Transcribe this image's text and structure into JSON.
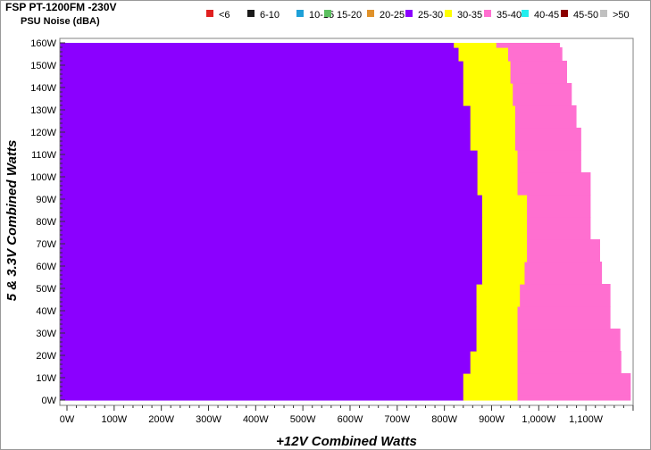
{
  "chart_data": {
    "type": "heatmap",
    "title": "FSP PT-1200FM -230V",
    "subtitle": "PSU Noise (dBA)",
    "xlabel": "+12V Combined Watts",
    "ylabel": "5 & 3.3V Combined Watts",
    "xlim": [
      0,
      1200
    ],
    "ylim": [
      0,
      160
    ],
    "x_tick_labels": [
      "0W",
      "100W",
      "200W",
      "300W",
      "400W",
      "500W",
      "600W",
      "700W",
      "800W",
      "900W",
      "1,000W",
      "1,100W"
    ],
    "x_tick_values": [
      0,
      100,
      200,
      300,
      400,
      500,
      600,
      700,
      800,
      900,
      1000,
      1100
    ],
    "y_tick_labels": [
      "0W",
      "10W",
      "20W",
      "30W",
      "40W",
      "50W",
      "60W",
      "70W",
      "80W",
      "90W",
      "100W",
      "110W",
      "120W",
      "130W",
      "140W",
      "150W",
      "160W"
    ],
    "y_tick_values": [
      0,
      10,
      20,
      30,
      40,
      50,
      60,
      70,
      80,
      90,
      100,
      110,
      120,
      130,
      140,
      150,
      160
    ],
    "legend": [
      {
        "label": "<6",
        "color": "#e02020"
      },
      {
        "label": "6-10",
        "color": "#1a1a1a"
      },
      {
        "label": "10-15",
        "color": "#1ea0d8"
      },
      {
        "label": "15-20",
        "color": "#5cc060"
      },
      {
        "label": "20-25",
        "color": "#e0922a"
      },
      {
        "label": "25-30",
        "color": "#8b00ff"
      },
      {
        "label": "30-35",
        "color": "#ffff00"
      },
      {
        "label": "35-40",
        "color": "#ff6fd0"
      },
      {
        "label": "40-45",
        "color": "#22eeee"
      },
      {
        "label": "45-50",
        "color": "#8b0000"
      },
      {
        "label": ">50",
        "color": "#c0c0c0"
      }
    ],
    "legend_position": "top",
    "grid": false,
    "bands": [
      {
        "y": [
          0,
          2
        ],
        "b25_30_end": 840,
        "b30_35_end": 955,
        "b35_40_end": 1195
      },
      {
        "y": [
          2,
          12
        ],
        "b25_30_end": 840,
        "b30_35_end": 955,
        "b35_40_end": 1195
      },
      {
        "y": [
          12,
          22
        ],
        "b25_30_end": 855,
        "b30_35_end": 955,
        "b35_40_end": 1175
      },
      {
        "y": [
          22,
          32
        ],
        "b25_30_end": 868,
        "b30_35_end": 955,
        "b35_40_end": 1173
      },
      {
        "y": [
          32,
          42
        ],
        "b25_30_end": 868,
        "b30_35_end": 955,
        "b35_40_end": 1152
      },
      {
        "y": [
          42,
          52
        ],
        "b25_30_end": 868,
        "b30_35_end": 960,
        "b35_40_end": 1152
      },
      {
        "y": [
          52,
          62
        ],
        "b25_30_end": 880,
        "b30_35_end": 970,
        "b35_40_end": 1134
      },
      {
        "y": [
          62,
          72
        ],
        "b25_30_end": 880,
        "b30_35_end": 975,
        "b35_40_end": 1130
      },
      {
        "y": [
          72,
          82
        ],
        "b25_30_end": 880,
        "b30_35_end": 975,
        "b35_40_end": 1110
      },
      {
        "y": [
          82,
          92
        ],
        "b25_30_end": 880,
        "b30_35_end": 975,
        "b35_40_end": 1110
      },
      {
        "y": [
          92,
          102
        ],
        "b25_30_end": 870,
        "b30_35_end": 955,
        "b35_40_end": 1110
      },
      {
        "y": [
          102,
          112
        ],
        "b25_30_end": 870,
        "b30_35_end": 955,
        "b35_40_end": 1090
      },
      {
        "y": [
          112,
          122
        ],
        "b25_30_end": 855,
        "b30_35_end": 950,
        "b35_40_end": 1090
      },
      {
        "y": [
          122,
          132
        ],
        "b25_30_end": 855,
        "b30_35_end": 950,
        "b35_40_end": 1080
      },
      {
        "y": [
          132,
          142
        ],
        "b25_30_end": 840,
        "b30_35_end": 945,
        "b35_40_end": 1070
      },
      {
        "y": [
          142,
          152
        ],
        "b25_30_end": 840,
        "b30_35_end": 940,
        "b35_40_end": 1060
      },
      {
        "y": [
          152,
          158
        ],
        "b25_30_end": 830,
        "b30_35_end": 935,
        "b35_40_end": 1050
      },
      {
        "y": [
          158,
          160
        ],
        "b25_30_end": 820,
        "b30_35_end": 910,
        "b35_40_end": 1045
      }
    ]
  }
}
